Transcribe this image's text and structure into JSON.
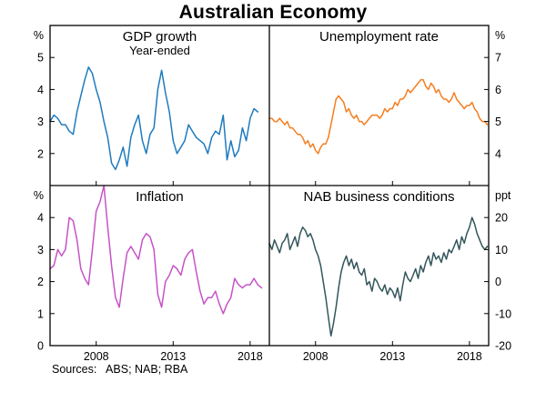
{
  "title": "Australian Economy",
  "footer": {
    "sources": "Sources:   ABS; NAB; RBA"
  },
  "chart_data": {
    "type": "line",
    "title": "Australian Economy",
    "layout": "2x2-panel",
    "grid": false,
    "x_range": [
      2005.0,
      2019.25
    ],
    "x_ticks": [
      2008,
      2013,
      2018
    ],
    "panels": [
      {
        "id": "gdp-growth",
        "title": "GDP growth",
        "subtitle": "Year-ended",
        "unit": "%",
        "axis_side": "left",
        "ylim": [
          1,
          6
        ],
        "yticks": [
          2,
          3,
          4,
          5
        ],
        "color": "#1f7bbf",
        "x_start": 2005.0,
        "x_step": 0.25,
        "values": [
          3.0,
          3.2,
          3.1,
          2.9,
          2.9,
          2.7,
          2.6,
          3.3,
          3.8,
          4.3,
          4.7,
          4.5,
          4.0,
          3.6,
          3.0,
          2.5,
          1.7,
          1.5,
          1.8,
          2.2,
          1.6,
          2.5,
          2.9,
          3.2,
          2.4,
          2.0,
          2.6,
          2.8,
          4.0,
          4.6,
          3.9,
          3.3,
          2.4,
          2.0,
          2.2,
          2.4,
          2.9,
          2.7,
          2.5,
          2.4,
          2.3,
          2.0,
          2.5,
          2.7,
          2.6,
          3.2,
          1.8,
          2.4,
          1.9,
          2.1,
          2.8,
          2.4,
          3.1,
          3.4,
          3.3
        ]
      },
      {
        "id": "unemployment-rate",
        "title": "Unemployment rate",
        "subtitle": "",
        "unit": "%",
        "axis_side": "right",
        "ylim": [
          3,
          8
        ],
        "yticks": [
          4,
          5,
          6,
          7
        ],
        "color": "#f57e20",
        "x_start": 2005.0,
        "x_step": 0.16667,
        "values": [
          5.1,
          5.1,
          5.0,
          5.0,
          5.1,
          5.0,
          4.9,
          5.0,
          4.8,
          4.8,
          4.7,
          4.6,
          4.6,
          4.5,
          4.3,
          4.4,
          4.2,
          4.3,
          4.1,
          4.0,
          4.2,
          4.3,
          4.3,
          4.5,
          4.9,
          5.3,
          5.7,
          5.8,
          5.7,
          5.6,
          5.3,
          5.4,
          5.2,
          5.1,
          5.2,
          5.0,
          5.0,
          4.9,
          5.0,
          5.1,
          5.2,
          5.2,
          5.2,
          5.1,
          5.2,
          5.4,
          5.3,
          5.4,
          5.4,
          5.6,
          5.5,
          5.7,
          5.7,
          5.8,
          6.0,
          5.9,
          6.0,
          6.1,
          6.2,
          6.3,
          6.3,
          6.1,
          6.0,
          6.2,
          6.1,
          5.9,
          6.0,
          5.8,
          5.7,
          5.7,
          5.6,
          5.7,
          5.9,
          5.7,
          5.6,
          5.5,
          5.4,
          5.5,
          5.5,
          5.6,
          5.4,
          5.3,
          5.1,
          5.0,
          5.0,
          4.9
        ]
      },
      {
        "id": "inflation",
        "title": "Inflation",
        "subtitle": "",
        "unit": "%",
        "axis_side": "left",
        "ylim": [
          0,
          5
        ],
        "yticks": [
          0,
          1,
          2,
          3,
          4
        ],
        "color": "#c653c6",
        "x_start": 2005.0,
        "x_step": 0.25,
        "values": [
          2.4,
          2.5,
          3.0,
          2.8,
          3.0,
          4.0,
          3.9,
          3.3,
          2.4,
          2.1,
          1.9,
          3.0,
          4.2,
          4.5,
          5.0,
          3.7,
          2.5,
          1.5,
          1.2,
          2.1,
          2.9,
          3.1,
          2.9,
          2.7,
          3.3,
          3.5,
          3.4,
          3.0,
          1.6,
          1.2,
          2.0,
          2.2,
          2.5,
          2.4,
          2.2,
          2.7,
          2.9,
          3.0,
          2.3,
          1.7,
          1.3,
          1.5,
          1.5,
          1.7,
          1.3,
          1.0,
          1.3,
          1.5,
          2.1,
          1.9,
          1.8,
          1.9,
          1.9,
          2.1,
          1.9,
          1.8
        ]
      },
      {
        "id": "nab-business-conditions",
        "title": "NAB business conditions",
        "subtitle": "",
        "unit": "ppt",
        "axis_side": "right",
        "ylim": [
          -20,
          30
        ],
        "yticks": [
          -20,
          -10,
          0,
          10,
          20
        ],
        "color": "#33565c",
        "x_start": 2005.0,
        "x_step": 0.16667,
        "values": [
          12,
          10,
          13,
          11,
          9,
          12,
          13,
          15,
          10,
          12,
          14,
          11,
          15,
          17,
          16,
          14,
          15,
          13,
          10,
          8,
          5,
          0,
          -5,
          -11,
          -17,
          -13,
          -8,
          -2,
          3,
          6,
          8,
          5,
          7,
          4,
          6,
          3,
          2,
          4,
          -1,
          0,
          -3,
          1,
          0,
          -2,
          -3,
          -1,
          -4,
          -2,
          -3,
          -5,
          -2,
          -6,
          -1,
          3,
          1,
          0,
          2,
          4,
          1,
          5,
          3,
          6,
          8,
          5,
          9,
          7,
          8,
          6,
          9,
          7,
          10,
          9,
          11,
          13,
          10,
          14,
          12,
          15,
          17,
          20,
          18,
          15,
          13,
          11,
          10,
          11
        ]
      }
    ],
    "sources": "Sources:   ABS; NAB; RBA"
  }
}
